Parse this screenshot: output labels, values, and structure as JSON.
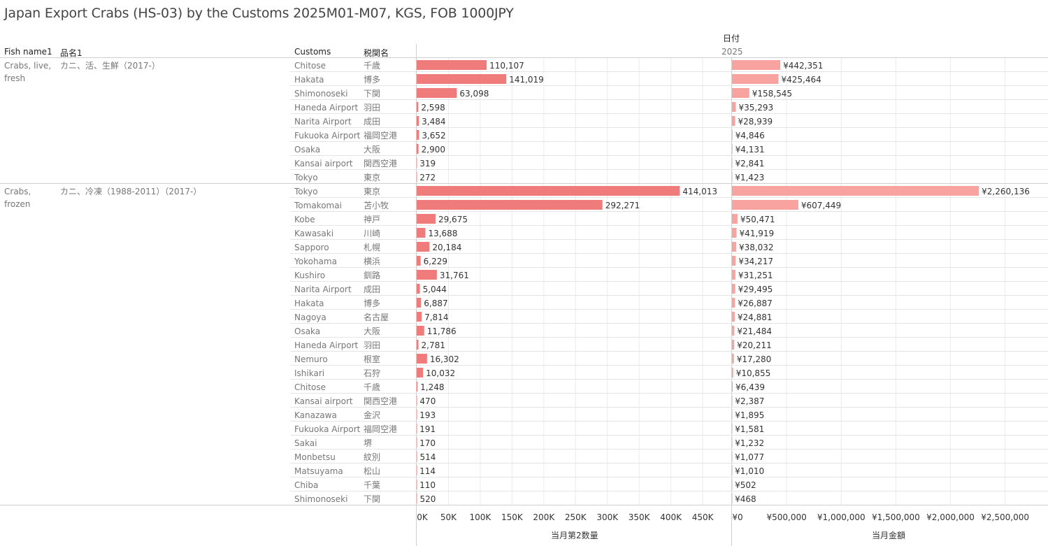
{
  "title": "Japan Export Crabs (HS-03) by the Customs 2025M01-M07, KGS, FOB 1000JPY",
  "headers": {
    "fish_name": "Fish name1",
    "item_name": "品名1",
    "customs": "Customs",
    "customs_jp": "税関名",
    "date_label": "日付",
    "year": "2025"
  },
  "colors": {
    "quantity_bar": "#f07b7b",
    "amount_bar": "#f9a3a1"
  },
  "chart_data": {
    "type": "bar",
    "orientation": "horizontal",
    "groups": [
      {
        "fish": "Crabs, live, fresh",
        "item": "カニ、活、生鮮（2017-）",
        "rows": [
          {
            "customs": "Chitose",
            "jp": "千歳",
            "qty": 110107,
            "qty_label": "110,107",
            "amt": 442351,
            "amt_label": "¥442,351"
          },
          {
            "customs": "Hakata",
            "jp": "博多",
            "qty": 141019,
            "qty_label": "141,019",
            "amt": 425464,
            "amt_label": "¥425,464"
          },
          {
            "customs": "Shimonoseki",
            "jp": "下関",
            "qty": 63098,
            "qty_label": "63,098",
            "amt": 158545,
            "amt_label": "¥158,545"
          },
          {
            "customs": "Haneda Airport",
            "jp": "羽田",
            "qty": 2598,
            "qty_label": "2,598",
            "amt": 35293,
            "amt_label": "¥35,293"
          },
          {
            "customs": "Narita Airport",
            "jp": "成田",
            "qty": 3484,
            "qty_label": "3,484",
            "amt": 28939,
            "amt_label": "¥28,939"
          },
          {
            "customs": "Fukuoka Airport",
            "jp": "福岡空港",
            "qty": 3652,
            "qty_label": "3,652",
            "amt": 4846,
            "amt_label": "¥4,846"
          },
          {
            "customs": "Osaka",
            "jp": "大阪",
            "qty": 2900,
            "qty_label": "2,900",
            "amt": 4131,
            "amt_label": "¥4,131"
          },
          {
            "customs": "Kansai airport",
            "jp": "関西空港",
            "qty": 319,
            "qty_label": "319",
            "amt": 2841,
            "amt_label": "¥2,841"
          },
          {
            "customs": "Tokyo",
            "jp": "東京",
            "qty": 272,
            "qty_label": "272",
            "amt": 1423,
            "amt_label": "¥1,423"
          }
        ]
      },
      {
        "fish": "Crabs, frozen",
        "item": "カニ、冷凍（1988-2011）（2017-）",
        "rows": [
          {
            "customs": "Tokyo",
            "jp": "東京",
            "qty": 414013,
            "qty_label": "414,013",
            "amt": 2260136,
            "amt_label": "¥2,260,136"
          },
          {
            "customs": "Tomakomai",
            "jp": "苫小牧",
            "qty": 292271,
            "qty_label": "292,271",
            "amt": 607449,
            "amt_label": "¥607,449"
          },
          {
            "customs": "Kobe",
            "jp": "神戸",
            "qty": 29675,
            "qty_label": "29,675",
            "amt": 50471,
            "amt_label": "¥50,471"
          },
          {
            "customs": "Kawasaki",
            "jp": "川崎",
            "qty": 13688,
            "qty_label": "13,688",
            "amt": 41919,
            "amt_label": "¥41,919"
          },
          {
            "customs": "Sapporo",
            "jp": "札幌",
            "qty": 20184,
            "qty_label": "20,184",
            "amt": 38032,
            "amt_label": "¥38,032"
          },
          {
            "customs": "Yokohama",
            "jp": "横浜",
            "qty": 6229,
            "qty_label": "6,229",
            "amt": 34217,
            "amt_label": "¥34,217"
          },
          {
            "customs": "Kushiro",
            "jp": "釧路",
            "qty": 31761,
            "qty_label": "31,761",
            "amt": 31251,
            "amt_label": "¥31,251"
          },
          {
            "customs": "Narita Airport",
            "jp": "成田",
            "qty": 5044,
            "qty_label": "5,044",
            "amt": 29495,
            "amt_label": "¥29,495"
          },
          {
            "customs": "Hakata",
            "jp": "博多",
            "qty": 6887,
            "qty_label": "6,887",
            "amt": 26887,
            "amt_label": "¥26,887"
          },
          {
            "customs": "Nagoya",
            "jp": "名古屋",
            "qty": 7814,
            "qty_label": "7,814",
            "amt": 24881,
            "amt_label": "¥24,881"
          },
          {
            "customs": "Osaka",
            "jp": "大阪",
            "qty": 11786,
            "qty_label": "11,786",
            "amt": 21484,
            "amt_label": "¥21,484"
          },
          {
            "customs": "Haneda Airport",
            "jp": "羽田",
            "qty": 2781,
            "qty_label": "2,781",
            "amt": 20211,
            "amt_label": "¥20,211"
          },
          {
            "customs": "Nemuro",
            "jp": "根室",
            "qty": 16302,
            "qty_label": "16,302",
            "amt": 17280,
            "amt_label": "¥17,280"
          },
          {
            "customs": "Ishikari",
            "jp": "石狩",
            "qty": 10032,
            "qty_label": "10,032",
            "amt": 10855,
            "amt_label": "¥10,855"
          },
          {
            "customs": "Chitose",
            "jp": "千歳",
            "qty": 1248,
            "qty_label": "1,248",
            "amt": 6439,
            "amt_label": "¥6,439"
          },
          {
            "customs": "Kansai airport",
            "jp": "関西空港",
            "qty": 470,
            "qty_label": "470",
            "amt": 2387,
            "amt_label": "¥2,387"
          },
          {
            "customs": "Kanazawa",
            "jp": "金沢",
            "qty": 193,
            "qty_label": "193",
            "amt": 1895,
            "amt_label": "¥1,895"
          },
          {
            "customs": "Fukuoka Airport",
            "jp": "福岡空港",
            "qty": 191,
            "qty_label": "191",
            "amt": 1581,
            "amt_label": "¥1,581"
          },
          {
            "customs": "Sakai",
            "jp": "堺",
            "qty": 170,
            "qty_label": "170",
            "amt": 1232,
            "amt_label": "¥1,232"
          },
          {
            "customs": "Monbetsu",
            "jp": "紋別",
            "qty": 514,
            "qty_label": "514",
            "amt": 1077,
            "amt_label": "¥1,077"
          },
          {
            "customs": "Matsuyama",
            "jp": "松山",
            "qty": 114,
            "qty_label": "114",
            "amt": 1010,
            "amt_label": "¥1,010"
          },
          {
            "customs": "Chiba",
            "jp": "千葉",
            "qty": 110,
            "qty_label": "110",
            "amt": 502,
            "amt_label": "¥502"
          },
          {
            "customs": "Shimonoseki",
            "jp": "下関",
            "qty": 520,
            "qty_label": "520",
            "amt": 468,
            "amt_label": "¥468"
          }
        ]
      }
    ],
    "qty_axis": {
      "label": "当月第2数量",
      "min": 0,
      "max": 495000,
      "ticks": [
        0,
        50000,
        100000,
        150000,
        200000,
        250000,
        300000,
        350000,
        400000,
        450000
      ],
      "tick_labels": [
        "0K",
        "50K",
        "100K",
        "150K",
        "200K",
        "250K",
        "300K",
        "350K",
        "400K",
        "450K"
      ]
    },
    "amt_axis": {
      "label": "当月金額",
      "min": 0,
      "max": 2880000,
      "ticks": [
        0,
        500000,
        1000000,
        1500000,
        2000000,
        2500000
      ],
      "tick_labels": [
        "¥0",
        "¥500,000",
        "¥1,000,000",
        "¥1,500,000",
        "¥2,000,000",
        "¥2,500,000"
      ]
    },
    "grid": true,
    "legend": "none"
  }
}
